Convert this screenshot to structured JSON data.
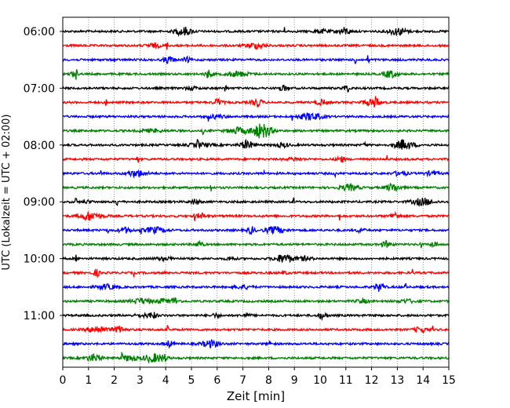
{
  "chart_data": {
    "type": "line",
    "title": "",
    "xlabel": "Zeit  [min]",
    "ylabel": "UTC (Lokalzeit = UTC + 02:00)",
    "xlim": [
      0,
      15
    ],
    "x_ticks": [
      "0",
      "1",
      "2",
      "3",
      "4",
      "5",
      "6",
      "7",
      "8",
      "9",
      "10",
      "11",
      "12",
      "13",
      "14",
      "15"
    ],
    "y_tick_labels": [
      "06:00",
      "07:00",
      "08:00",
      "09:00",
      "10:00",
      "11:00"
    ],
    "trace_interval_minutes": 15,
    "trace_colors": [
      "#000000",
      "#ff0000",
      "#0000ff",
      "#008000"
    ],
    "grid": "vertical dotted",
    "traces": [
      {
        "start": "06:00",
        "color": "#000000"
      },
      {
        "start": "06:15",
        "color": "#ff0000"
      },
      {
        "start": "06:30",
        "color": "#0000ff"
      },
      {
        "start": "06:45",
        "color": "#008000"
      },
      {
        "start": "07:00",
        "color": "#000000"
      },
      {
        "start": "07:15",
        "color": "#ff0000"
      },
      {
        "start": "07:30",
        "color": "#0000ff"
      },
      {
        "start": "07:45",
        "color": "#008000"
      },
      {
        "start": "08:00",
        "color": "#000000"
      },
      {
        "start": "08:15",
        "color": "#ff0000"
      },
      {
        "start": "08:30",
        "color": "#0000ff"
      },
      {
        "start": "08:45",
        "color": "#008000"
      },
      {
        "start": "09:00",
        "color": "#000000"
      },
      {
        "start": "09:15",
        "color": "#ff0000"
      },
      {
        "start": "09:30",
        "color": "#0000ff"
      },
      {
        "start": "09:45",
        "color": "#008000"
      },
      {
        "start": "10:00",
        "color": "#000000"
      },
      {
        "start": "10:15",
        "color": "#ff0000"
      },
      {
        "start": "10:30",
        "color": "#0000ff"
      },
      {
        "start": "10:45",
        "color": "#008000"
      },
      {
        "start": "11:00",
        "color": "#000000"
      },
      {
        "start": "11:15",
        "color": "#ff0000"
      },
      {
        "start": "11:30",
        "color": "#0000ff"
      },
      {
        "start": "11:45",
        "color": "#008000"
      }
    ]
  }
}
